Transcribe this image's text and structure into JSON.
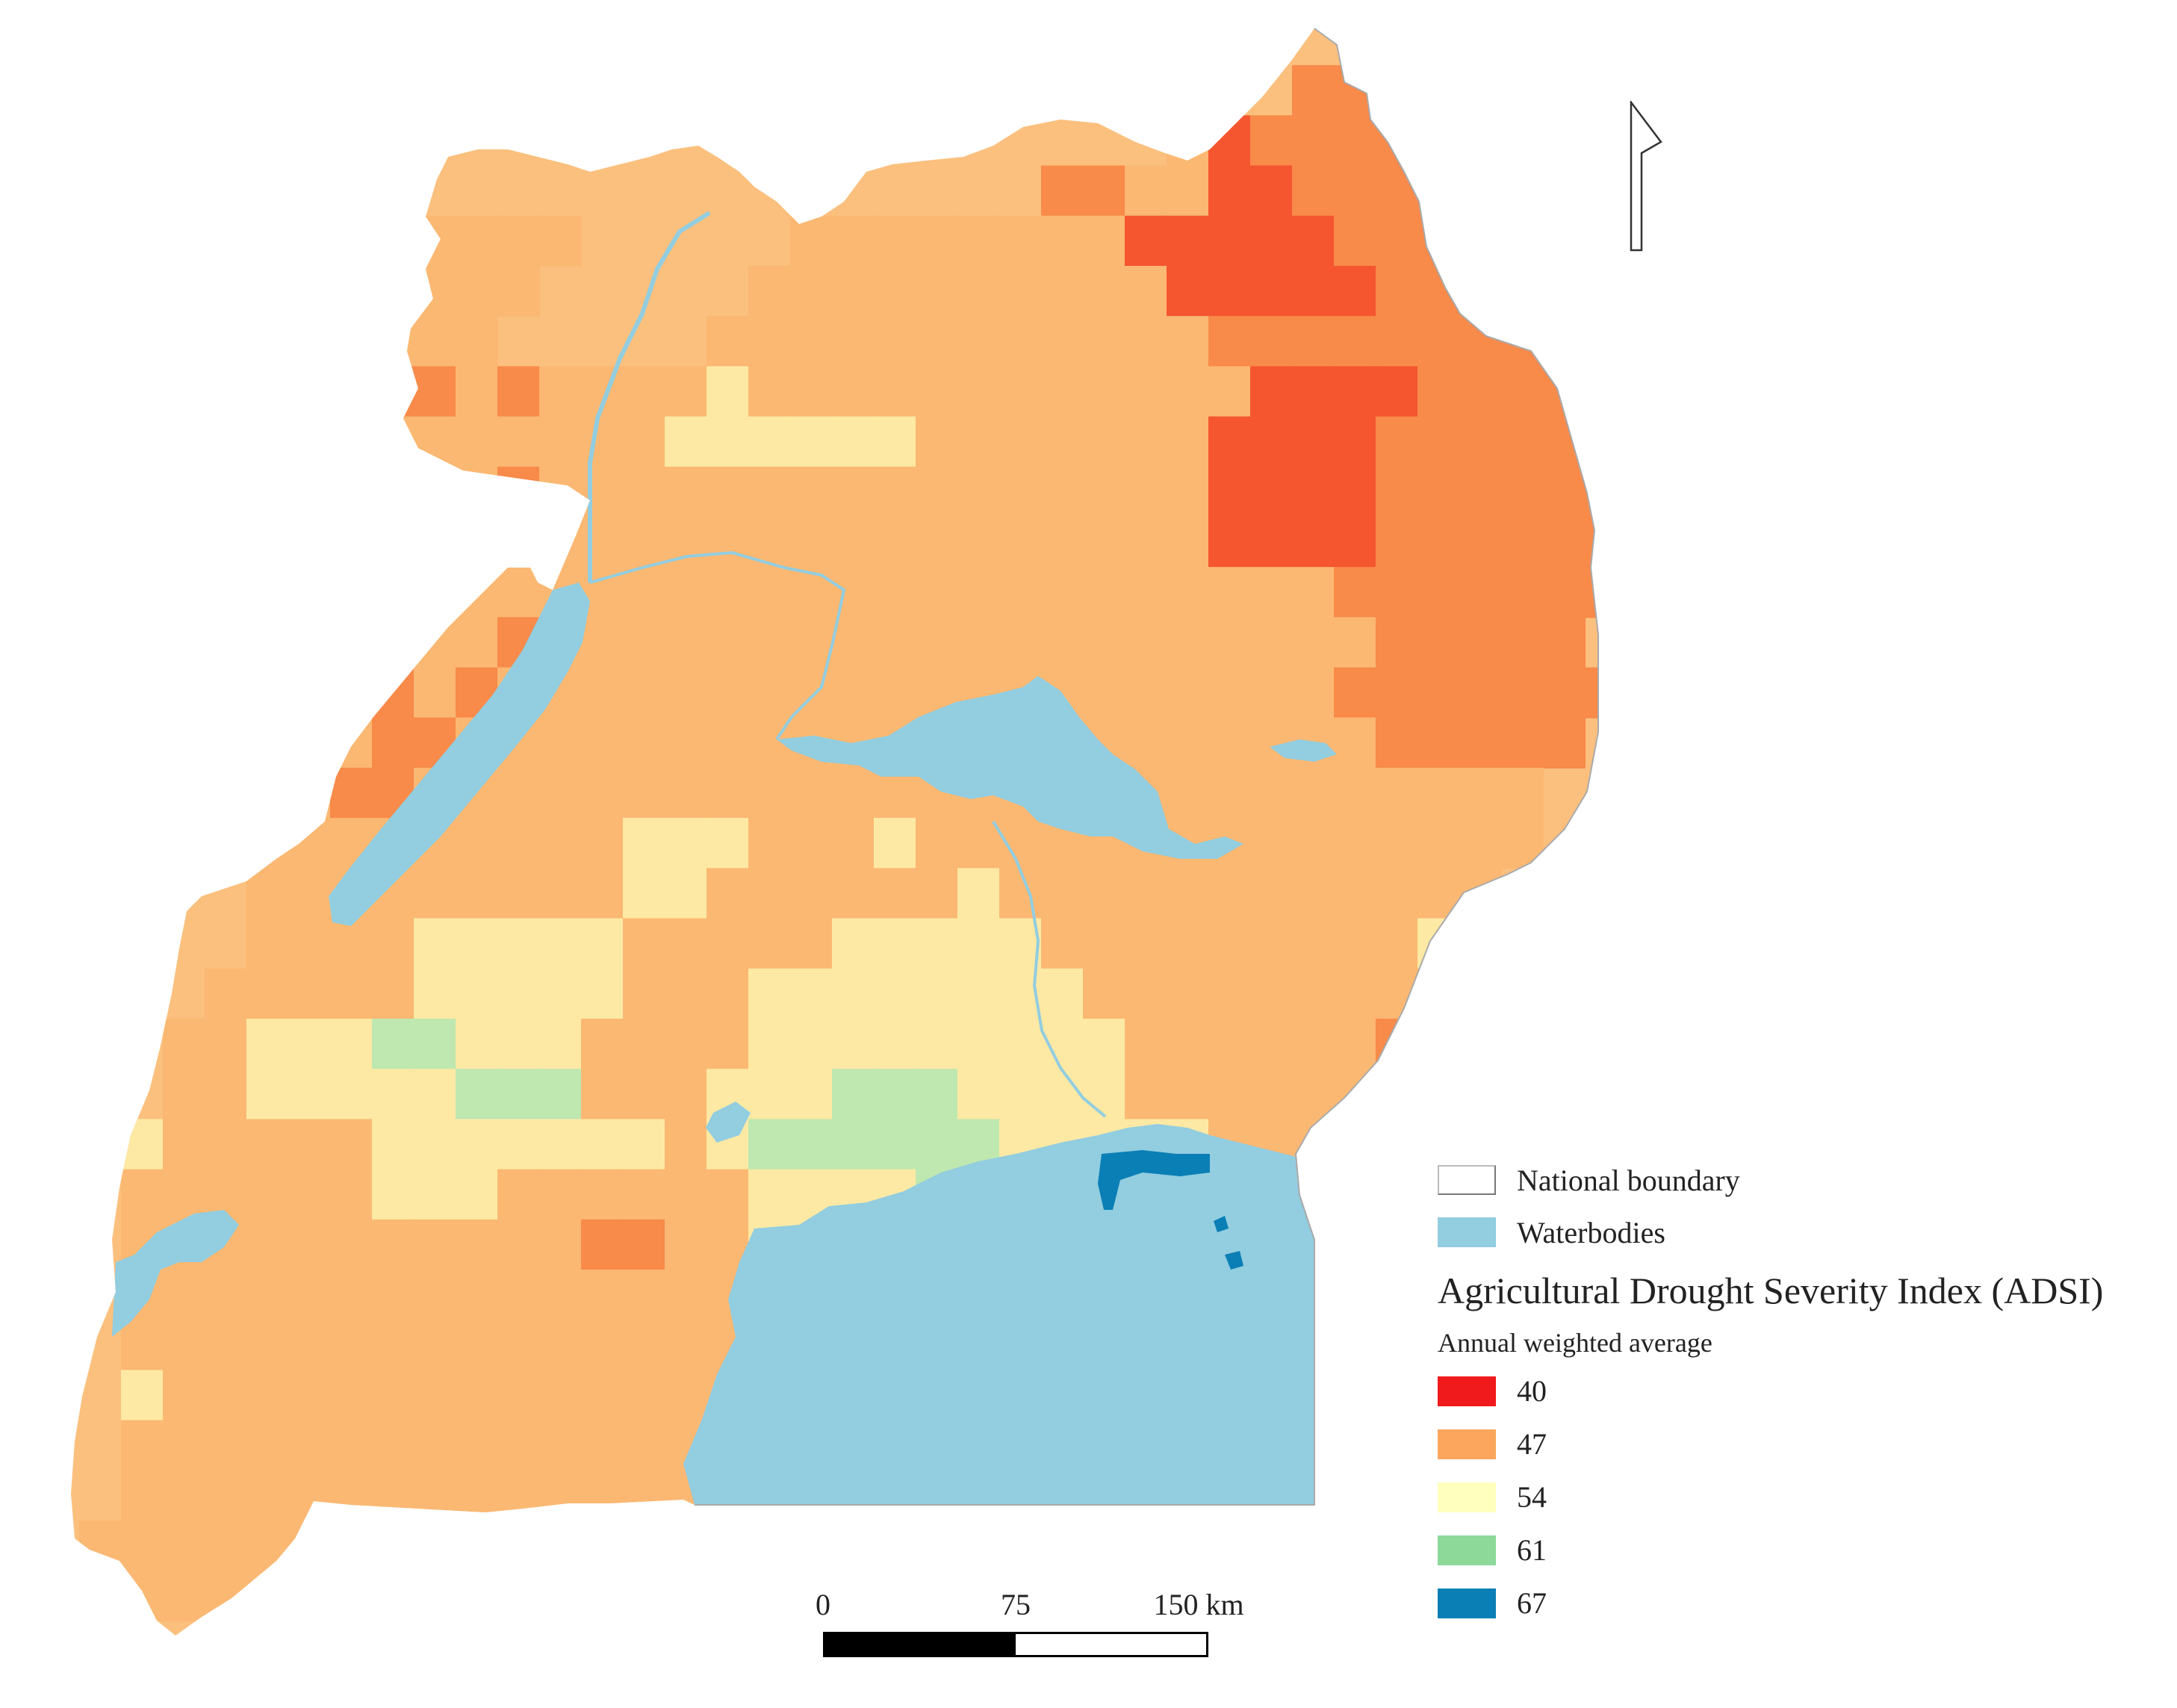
{
  "legend": {
    "boundary_label": "National boundary",
    "water_label": "Waterbodies",
    "title": "Agricultural Drought Severity Index (ADSI)",
    "subtitle": "Annual weighted average",
    "classes": [
      {
        "value": "40",
        "color": "#f0191b"
      },
      {
        "value": "47",
        "color": "#fba65c"
      },
      {
        "value": "54",
        "color": "#ffffbe"
      },
      {
        "value": "61",
        "color": "#8cd99a"
      },
      {
        "value": "67",
        "color": "#0a7fb5"
      }
    ]
  },
  "colors": {
    "water": "#92cde0",
    "deep": "#0a7fb5",
    "ramp": [
      "#f0191b",
      "#fba65c",
      "#ffffbe",
      "#8cd99a",
      "#0a7fb5"
    ]
  },
  "scale_bar": {
    "ticks": [
      "0",
      "75",
      "150 km"
    ]
  },
  "map": {
    "adsi_grid": [
      "--------------------------------40------",
      "------------------------------4444------",
      "---------------------------5344444------",
      "------------------------445533444444----",
      "------5555555-----555555553333344444----",
      "------555555-----55555555553333344444---",
      "------55555-----55555555555544444444----",
      "-----555445455556555555555555333344444--",
      "----5554555555566666655555553333444444--",
      "----44455554555555555555555533334444444-",
      "---5544455555555555555555555333344444444",
      "----4444455555555555555555555554444444--",
      "----544445545555555555555555555544444---",
      "---55444454555555555555555555554444444--",
      "------5544555555555555555555555544444---",
      "---555544555555555555555555555555555----",
      "-----5555555556665556555555555555555----",
      "-----555555555665555556555555555555-----",
      "-----55556666655555666665555555556------",
      "----5555566666555666666665555555555-----",
      "---556667766655556666666665555554-------",
      "---55666667775556667776666555555--------",
      "--6555556666666567777776666655555-------",
      "--5555556665555556666765555555----------",
      "--5555555555544556666666555555----------",
      "--5555555555555555555555555555----------",
      "--5555555555555555555555555555----------",
      "--6555555555555555555555555555----------",
      "--5555555555555555--------------------- ",
      "--5555555555555555----------------------",
      "-555555555555555------------------------",
      "-455555555555555------------------------"
    ]
  }
}
